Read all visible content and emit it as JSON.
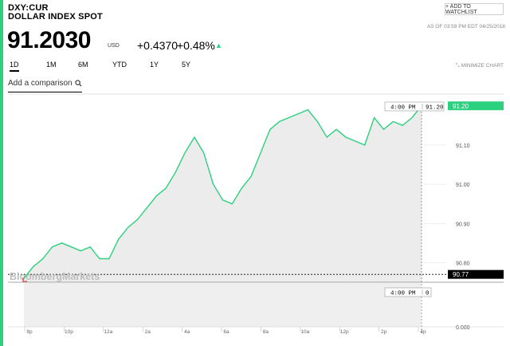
{
  "header": {
    "ticker": "DXY:CUR",
    "name": "DOLLAR INDEX SPOT",
    "price": "91.2030",
    "currency": "USD",
    "change": "+0.4370",
    "change_pct": "+0.48%",
    "watchlist_label": "+ ADD TO WATCHLIST",
    "as_of": "AS OF 03:59 PM EDT 04/25/2018"
  },
  "tabs": [
    {
      "label": "1D",
      "active": true
    },
    {
      "label": "1M",
      "active": false
    },
    {
      "label": "6M",
      "active": false
    },
    {
      "label": "YTD",
      "active": false
    },
    {
      "label": "1Y",
      "active": false
    },
    {
      "label": "5Y",
      "active": false
    }
  ],
  "minimize_label": "MINIMIZE CHART",
  "compare": {
    "placeholder": "Add a comparison"
  },
  "watermark": "BloombergMarkets",
  "colors": {
    "accent": "#2bd17e",
    "line": "#2bd17e",
    "fill": "#ececec"
  },
  "chart_data": {
    "type": "line",
    "price_chart": {
      "x_ticks": [
        "8p",
        "10p",
        "12a",
        "2a",
        "4a",
        "6a",
        "8a",
        "10a",
        "12p",
        "2p",
        "4p"
      ],
      "y_ticks": [
        "90.80",
        "90.90",
        "91.00",
        "91.10"
      ],
      "last_value_label": "91.20",
      "previous_close_label": "90.77",
      "previous_close": 90.77,
      "ylim": [
        90.75,
        91.23
      ],
      "crosshair_label": "4:00 PM",
      "crosshair_value": "91.20",
      "series": [
        {
          "x": [
            "19:00",
            "19:30",
            "20:00",
            "20:30",
            "21:00",
            "21:30",
            "22:00",
            "22:30",
            "23:00",
            "23:30",
            "00:00",
            "00:30",
            "01:00",
            "01:30",
            "02:00",
            "02:30",
            "03:00",
            "03:30",
            "04:00",
            "04:30",
            "05:00",
            "05:30",
            "06:00",
            "06:30",
            "07:00",
            "07:30",
            "08:00",
            "08:30",
            "09:00",
            "09:30",
            "10:00",
            "10:30",
            "11:00",
            "11:30",
            "12:00",
            "12:30",
            "13:00",
            "13:30",
            "14:00",
            "14:30",
            "15:00",
            "15:30",
            "16:00"
          ],
          "values": [
            90.76,
            90.79,
            90.81,
            90.84,
            90.85,
            90.84,
            90.83,
            90.84,
            90.81,
            90.81,
            90.86,
            90.89,
            90.91,
            90.94,
            90.97,
            90.99,
            91.03,
            91.08,
            91.12,
            91.08,
            91.0,
            90.96,
            90.95,
            90.99,
            91.02,
            91.08,
            91.14,
            91.16,
            91.17,
            91.18,
            91.19,
            91.16,
            91.12,
            91.14,
            91.12,
            91.11,
            91.1,
            91.17,
            91.14,
            91.16,
            91.15,
            91.17,
            91.2
          ]
        }
      ]
    },
    "volume_chart": {
      "y_ticks": [
        "0.000"
      ],
      "crosshair_label": "4:00 PM",
      "crosshair_value": "0"
    }
  }
}
